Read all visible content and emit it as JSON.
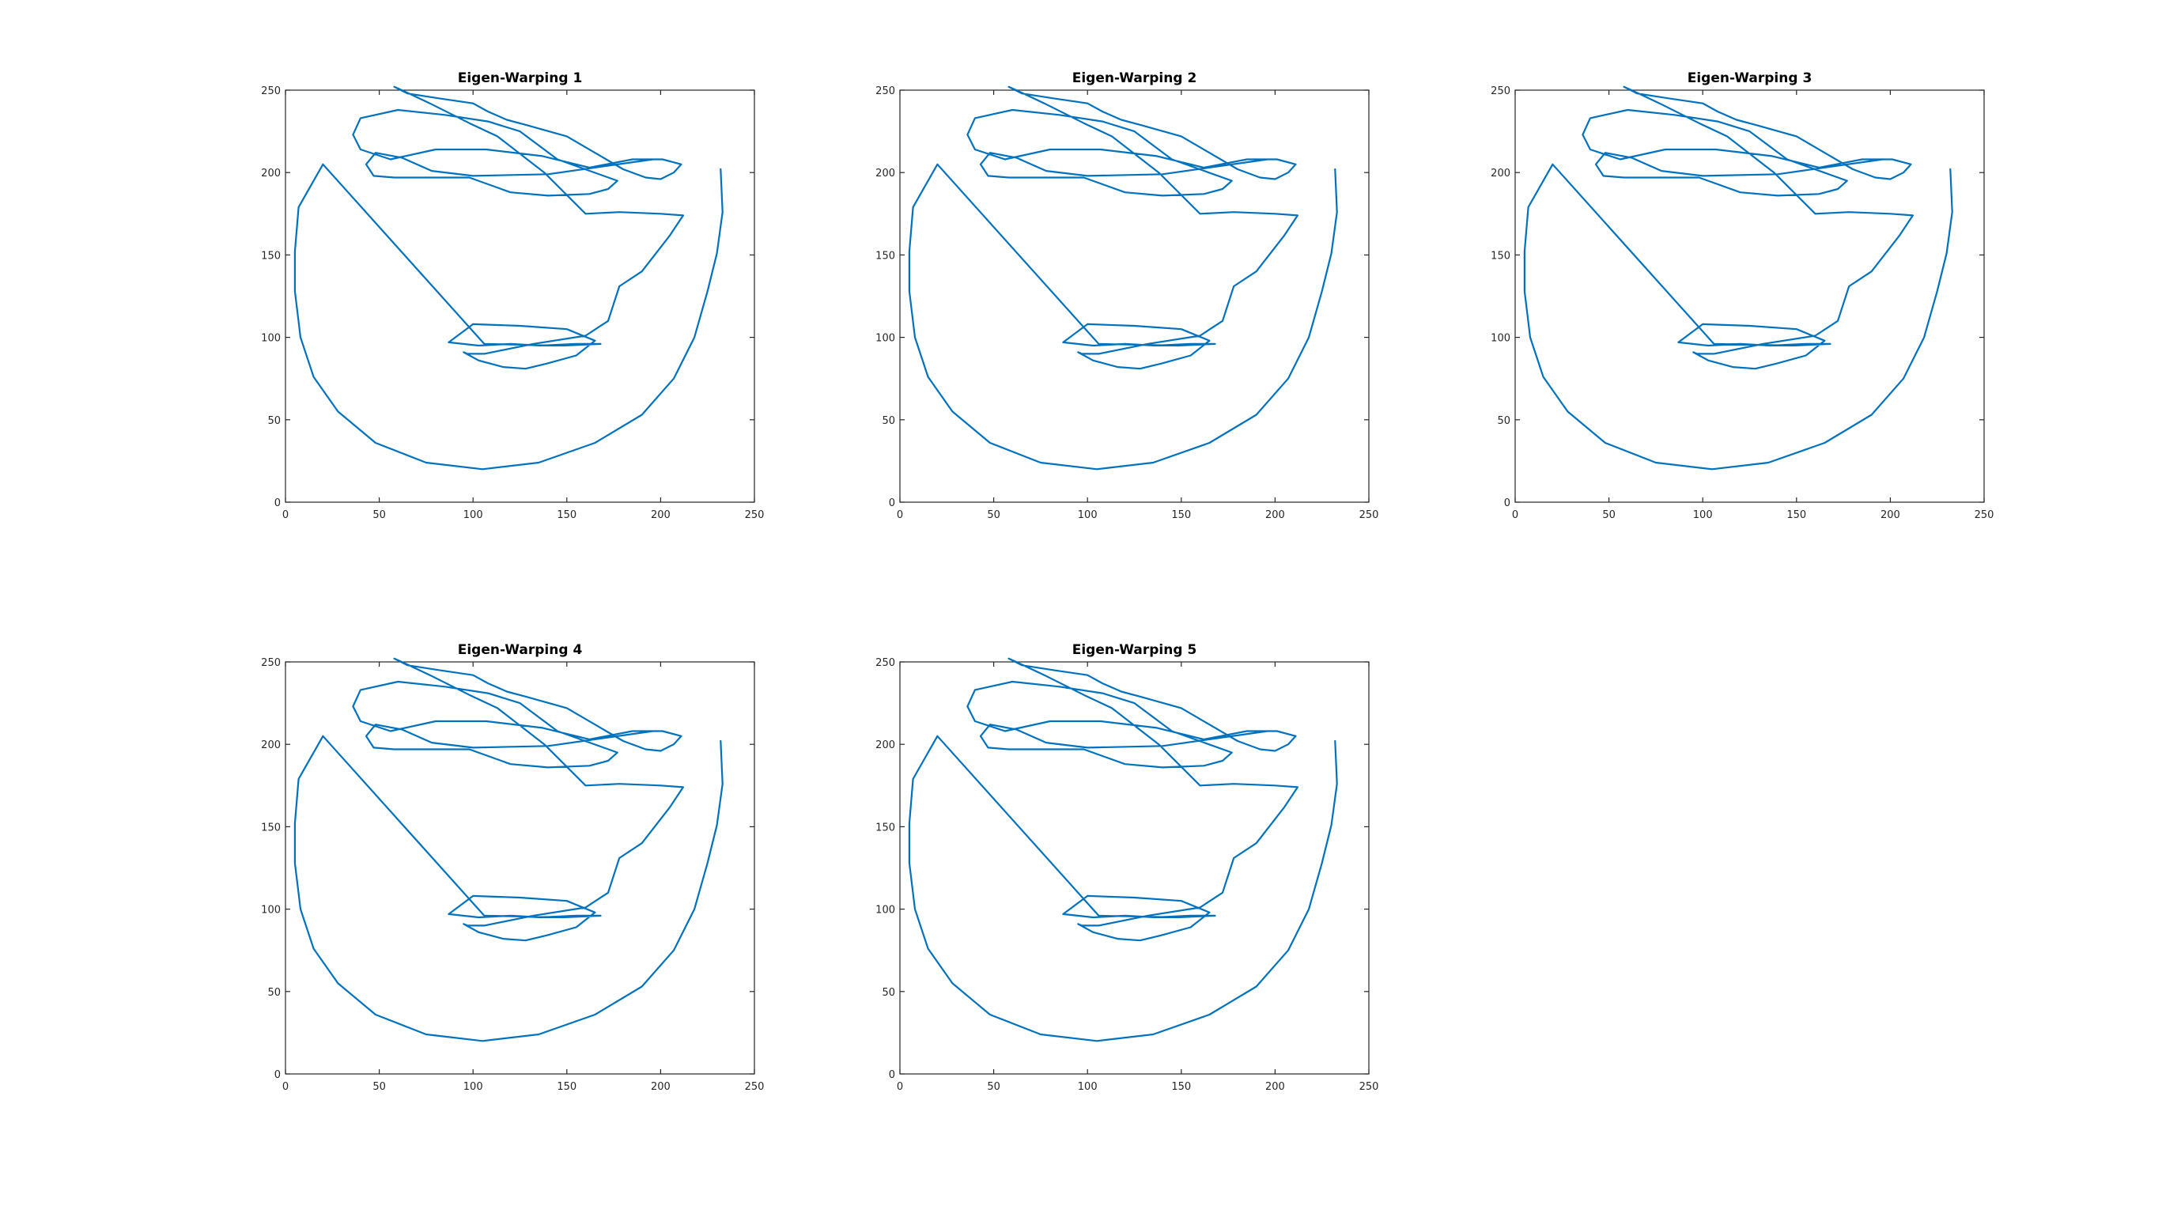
{
  "chart_data": [
    {
      "type": "line",
      "title": "Eigen-Warping 1",
      "xlim": [
        0,
        250
      ],
      "ylim": [
        0,
        250
      ],
      "xticks": [
        0,
        50,
        100,
        150,
        200,
        250
      ],
      "yticks": [
        0,
        50,
        100,
        150,
        200,
        250
      ],
      "grid": false,
      "legend": "none",
      "color": "#0072BD",
      "shape": "base"
    },
    {
      "type": "line",
      "title": "Eigen-Warping 2",
      "xlim": [
        0,
        250
      ],
      "ylim": [
        0,
        250
      ],
      "xticks": [
        0,
        50,
        100,
        150,
        200,
        250
      ],
      "yticks": [
        0,
        50,
        100,
        150,
        200,
        250
      ],
      "grid": false,
      "legend": "none",
      "color": "#0072BD",
      "shape": "base"
    },
    {
      "type": "line",
      "title": "Eigen-Warping 3",
      "xlim": [
        0,
        250
      ],
      "ylim": [
        0,
        250
      ],
      "xticks": [
        0,
        50,
        100,
        150,
        200,
        250
      ],
      "yticks": [
        0,
        50,
        100,
        150,
        200,
        250
      ],
      "grid": false,
      "legend": "none",
      "color": "#0072BD",
      "shape": "base"
    },
    {
      "type": "line",
      "title": "Eigen-Warping 4",
      "xlim": [
        0,
        250
      ],
      "ylim": [
        0,
        250
      ],
      "xticks": [
        0,
        50,
        100,
        150,
        200,
        250
      ],
      "yticks": [
        0,
        50,
        100,
        150,
        200,
        250
      ],
      "grid": false,
      "legend": "none",
      "color": "#0072BD",
      "shape": "base"
    },
    {
      "type": "line",
      "title": "Eigen-Warping 5",
      "xlim": [
        0,
        250
      ],
      "ylim": [
        0,
        250
      ],
      "xticks": [
        0,
        50,
        100,
        150,
        200,
        250
      ],
      "yticks": [
        0,
        50,
        100,
        150,
        200,
        250
      ],
      "grid": false,
      "legend": "none",
      "color": "#0072BD",
      "shape": "base"
    }
  ],
  "face_shape": {
    "x": [
      232,
      233,
      230,
      225,
      218,
      207,
      190,
      165,
      135,
      105,
      75,
      48,
      28,
      15,
      8,
      5,
      5,
      7,
      20,
      106,
      148,
      168,
      155,
      136,
      120,
      103,
      87,
      100,
      125,
      150,
      165,
      155,
      139,
      128,
      116,
      103,
      95,
      97,
      106,
      132,
      160,
      172,
      178,
      190,
      205,
      212,
      200,
      178,
      160,
      138,
      113,
      98,
      77,
      62,
      58,
      65,
      82,
      100,
      108,
      118,
      128,
      150,
      165,
      180,
      192,
      200,
      207,
      211,
      201,
      185,
      162,
      137,
      107,
      80,
      56,
      40,
      36,
      40,
      60,
      85,
      108,
      125,
      145,
      177,
      172,
      162,
      140,
      120,
      98,
      83,
      58,
      47,
      43,
      48,
      62,
      78,
      100,
      140,
      196
    ],
    "y": [
      202,
      176,
      151,
      128,
      100,
      75,
      53,
      36,
      24,
      20,
      24,
      36,
      55,
      76,
      100,
      128,
      152,
      179,
      205,
      96,
      95,
      96,
      96,
      95,
      96,
      95,
      97,
      108,
      107,
      105,
      98,
      89,
      84,
      81,
      82,
      86,
      91,
      90,
      90,
      96,
      101,
      110,
      131,
      140,
      162,
      174,
      175,
      176,
      175,
      200,
      222,
      230,
      242,
      250,
      252,
      248,
      245,
      242,
      237,
      232,
      229,
      222,
      212,
      202,
      197,
      196,
      200,
      205,
      208,
      208,
      203,
      210,
      214,
      214,
      208,
      214,
      223,
      233,
      238,
      235,
      231,
      225,
      208,
      195,
      190,
      187,
      186,
      188,
      197,
      197,
      197,
      198,
      205,
      212,
      209,
      201,
      198,
      199,
      208
    ]
  }
}
